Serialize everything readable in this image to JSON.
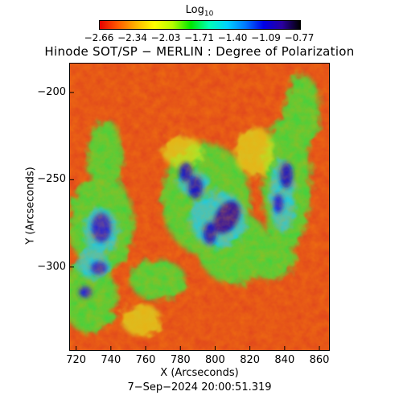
{
  "colorbar": {
    "label": "Log",
    "label_sub": "10",
    "ticks": [
      "−2.66",
      "−2.34",
      "−2.03",
      "−1.71",
      "−1.40",
      "−1.09",
      "−0.77"
    ],
    "colors": [
      "#e60000",
      "#ff5a00",
      "#ffb400",
      "#ffff00",
      "#b4ff00",
      "#00e600",
      "#00ffb4",
      "#00d2ff",
      "#0078ff",
      "#0000e6",
      "#2a00a0",
      "#000000"
    ]
  },
  "title": "Hinode SOT/SP − MERLIN : Degree of Polarization",
  "x_axis": {
    "label": "X (Arcseconds)",
    "ticks": [
      "720",
      "740",
      "760",
      "780",
      "800",
      "820",
      "840",
      "860"
    ],
    "range": [
      716,
      866
    ]
  },
  "y_axis": {
    "label": "Y (Arcseconds)",
    "ticks": [
      "−200",
      "−250",
      "−300"
    ],
    "tick_values": [
      -200,
      -250,
      -300
    ],
    "range": [
      -348,
      -183
    ]
  },
  "footer": "7−Sep−2024 20:00:51.319",
  "image_description_palette": {
    "background_low": "#e8401a",
    "mid": "#2ed02a",
    "high": "#1a1ad0"
  }
}
